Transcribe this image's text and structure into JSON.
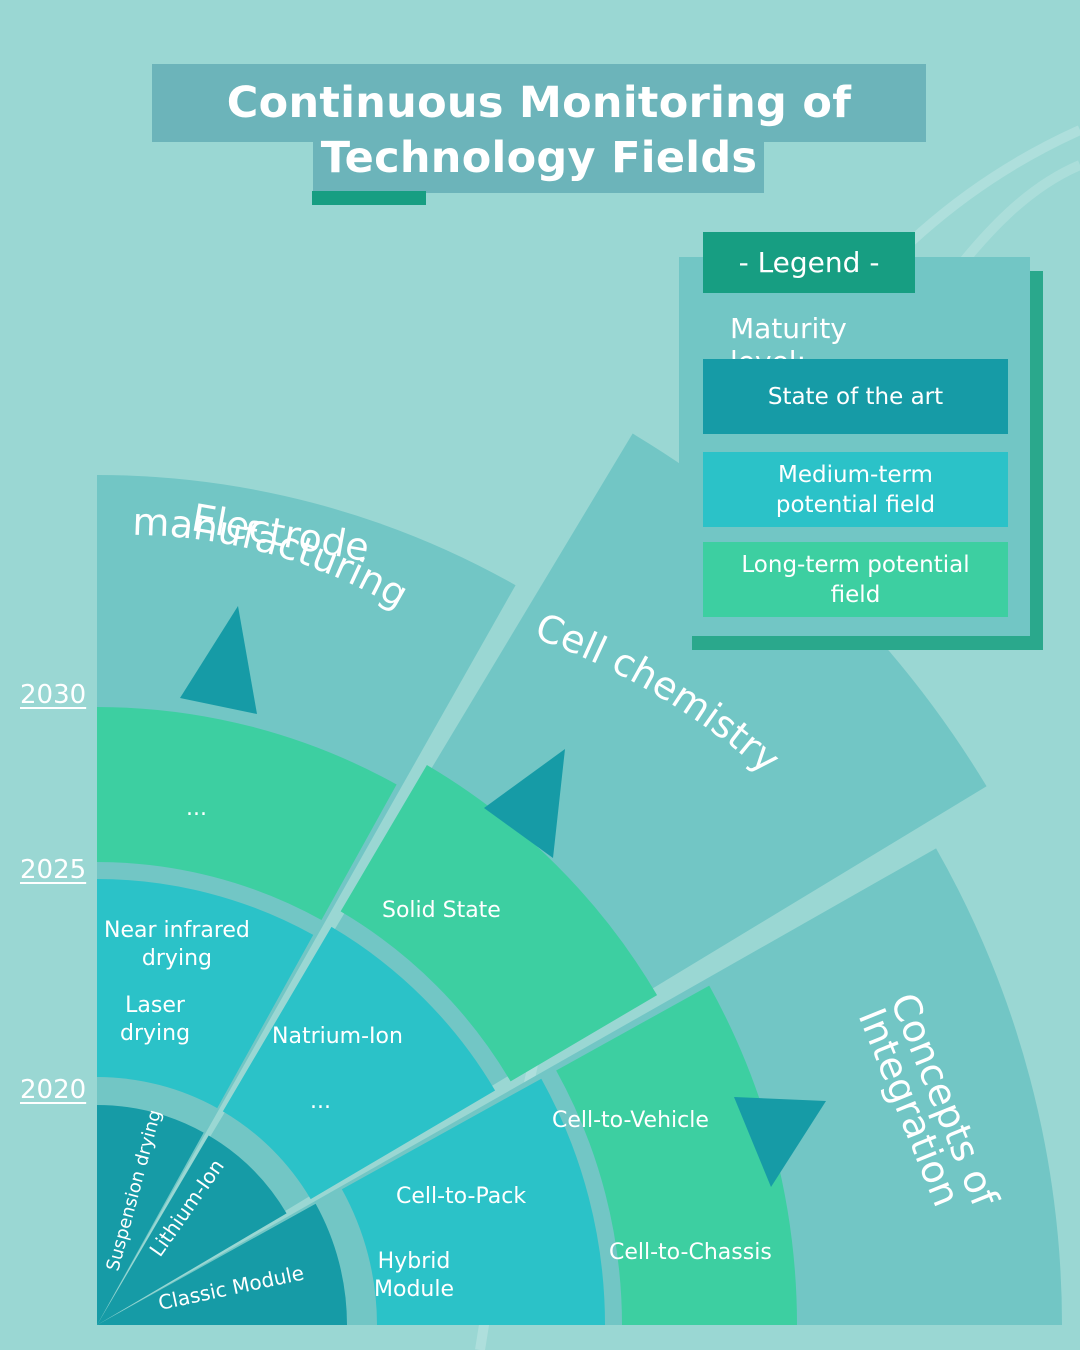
{
  "title": {
    "line1": "Continuous Monitoring of",
    "line2": "Technology Fields"
  },
  "legend": {
    "header": "- Legend -",
    "subtitle": "Maturity level:",
    "items": [
      {
        "label_line1": "State of the art",
        "label_line2": "",
        "color": "#169ba6"
      },
      {
        "label_line1": "Medium-term",
        "label_line2": "potential field",
        "color": "#2bc2c8"
      },
      {
        "label_line1": "Long-term potential",
        "label_line2": "field",
        "color": "#3dcfa1"
      }
    ]
  },
  "years": [
    "2030",
    "2025",
    "2020"
  ],
  "sectors": {
    "electrode": "Electrode manufacturing",
    "electrode_line1": "Electrode",
    "electrode_line2": "manufacturing",
    "cell": "Cell chemistry",
    "integration_line1": "Concepts of",
    "integration_line2": "Integration"
  },
  "entries": {
    "suspension_drying": "Suspension drying",
    "lithium_ion": "Lithium-Ion",
    "classic_module": "Classic Module",
    "near_infrared_line1": "Near infrared",
    "near_infrared_line2": "drying",
    "laser_line1": "Laser",
    "laser_line2": "drying",
    "natrium_ion": "Natrium-Ion",
    "ellipsis_cell_mid": "...",
    "cell_to_pack": "Cell-to-Pack",
    "hybrid_line1": "Hybrid",
    "hybrid_line2": "Module",
    "ellipsis_electrode_long": "...",
    "solid_state": "Solid State",
    "cell_to_vehicle": "Cell-to-Vehicle",
    "cell_to_chassis": "Cell-to-Chassis"
  },
  "colors": {
    "background": "#9ad7d3",
    "sector_band": "#72c6c5",
    "state_of_the_art": "#169ba6",
    "medium_term": "#2bc2c8",
    "long_term": "#3dcfa1",
    "accent": "#179e82"
  }
}
